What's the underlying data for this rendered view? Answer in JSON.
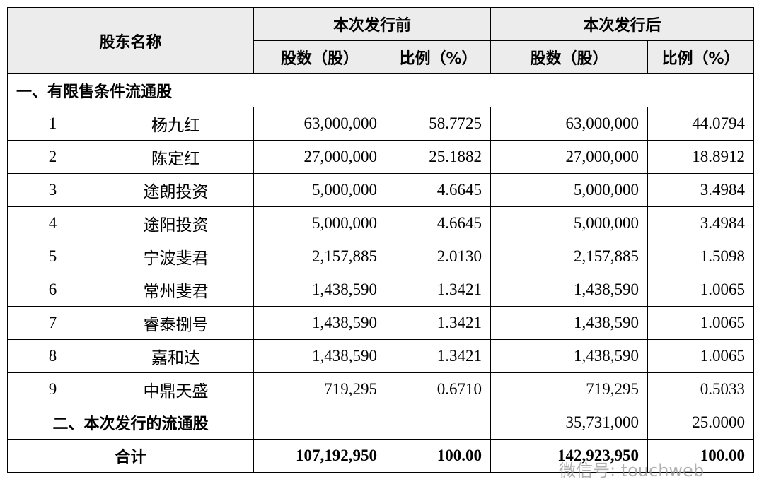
{
  "table": {
    "header": {
      "shareholder": "股东名称",
      "before": "本次发行前",
      "after": "本次发行后",
      "shares_before": "股数（股）",
      "ratio_before": "比例（%）",
      "shares_after": "股数（股）",
      "ratio_after": "比例（%）"
    },
    "section1": "一、有限售条件流通股",
    "rows": [
      [
        "1",
        "杨九红",
        "63,000,000",
        "58.7725",
        "63,000,000",
        "44.0794"
      ],
      [
        "2",
        "陈定红",
        "27,000,000",
        "25.1882",
        "27,000,000",
        "18.8912"
      ],
      [
        "3",
        "途朗投资",
        "5,000,000",
        "4.6645",
        "5,000,000",
        "3.4984"
      ],
      [
        "4",
        "途阳投资",
        "5,000,000",
        "4.6645",
        "5,000,000",
        "3.4984"
      ],
      [
        "5",
        "宁波斐君",
        "2,157,885",
        "2.0130",
        "2,157,885",
        "1.5098"
      ],
      [
        "6",
        "常州斐君",
        "1,438,590",
        "1.3421",
        "1,438,590",
        "1.0065"
      ],
      [
        "7",
        "睿泰捌号",
        "1,438,590",
        "1.3421",
        "1,438,590",
        "1.0065"
      ],
      [
        "8",
        "嘉和达",
        "1,438,590",
        "1.3421",
        "1,438,590",
        "1.0065"
      ],
      [
        "9",
        "中鼎天盛",
        "719,295",
        "0.6710",
        "719,295",
        "0.5033"
      ]
    ],
    "section2": {
      "label": "二、本次发行的流通股",
      "shares_after": "35,731,000",
      "ratio_after": "25.0000"
    },
    "total": {
      "label": "合计",
      "shares_before": "107,192,950",
      "ratio_before": "100.00",
      "shares_after": "142,923,950",
      "ratio_after": "100.00"
    }
  },
  "watermark": "微信号: touchweb"
}
